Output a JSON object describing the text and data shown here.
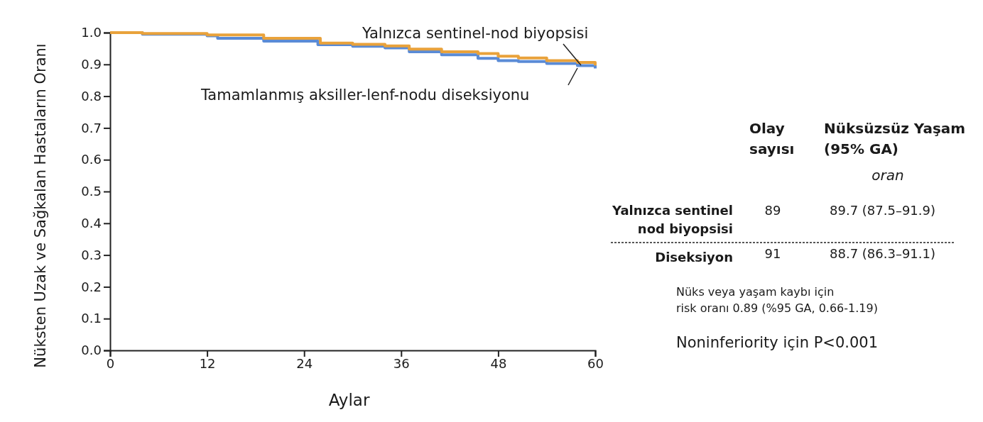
{
  "chart_data": {
    "type": "step",
    "xlabel": "Aylar",
    "ylabel": "Nüksten Uzak ve Sağkalan Hastaların Oranı",
    "xlim": [
      0,
      60
    ],
    "xticks": [
      0,
      12,
      24,
      36,
      48,
      60
    ],
    "ylim": [
      0,
      1
    ],
    "yticks": [
      {
        "value": 0,
        "label": "0.0"
      },
      {
        "value": 0.1,
        "label": "0.1"
      },
      {
        "value": 0.2,
        "label": "0.2"
      },
      {
        "value": 0.3,
        "label": "0.3"
      },
      {
        "value": 0.4,
        "label": "0.4"
      },
      {
        "value": 0.5,
        "label": "0.5"
      },
      {
        "value": 0.6,
        "label": "0.6"
      },
      {
        "value": 0.7,
        "label": "0.7"
      },
      {
        "value": 0.8,
        "label": "0.8"
      },
      {
        "value": 0.9,
        "label": "0.9"
      },
      {
        "value": 1,
        "label": "1.0"
      }
    ],
    "grid": false,
    "legend": false,
    "marker": "none",
    "line_style": "solid",
    "series": [
      {
        "name": "Yalnızca sentinel-nod biyopsisi",
        "color": "#e9a23b",
        "x": [
          0,
          4,
          12,
          19,
          26,
          30,
          34,
          37,
          41,
          45.5,
          48,
          50.5,
          54,
          57.8,
          60
        ],
        "values": [
          1.0,
          0.997,
          0.993,
          0.982,
          0.967,
          0.963,
          0.958,
          0.948,
          0.94,
          0.934,
          0.926,
          0.92,
          0.912,
          0.906,
          0.897
        ]
      },
      {
        "name": "Tamamlanmış aksiller-lenf-nodu diseksiyonu",
        "color": "#5a8bd6",
        "x": [
          0,
          4,
          12,
          13.3,
          19,
          25.7,
          30,
          34,
          37,
          41,
          45.5,
          48,
          50.5,
          54,
          57.8,
          60
        ],
        "values": [
          1.0,
          0.995,
          0.99,
          0.982,
          0.973,
          0.962,
          0.957,
          0.952,
          0.94,
          0.93,
          0.919,
          0.912,
          0.909,
          0.903,
          0.896,
          0.887
        ]
      }
    ],
    "annotations": [
      "Olay\nsayısı",
      "Nüksüzsüz Yaşam\n(95% GA)",
      "oran",
      "Yalnızca sentinel\nnod biyopsisi",
      "89",
      "89.7 (87.5–91.9)",
      "Diseksiyon",
      "91",
      "88.7 (86.3–91.1)",
      "Nüks veya yaşam kaybı için\nrisk oranı 0.89 (%95 GA, 0.66-1.19)",
      "Noninferiority için P<0.001"
    ]
  }
}
